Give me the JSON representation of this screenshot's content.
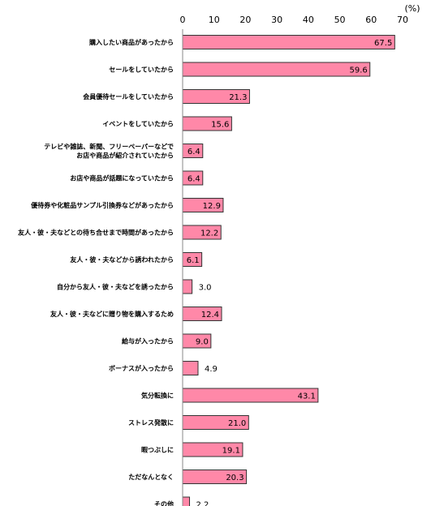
{
  "chart_data": {
    "type": "bar",
    "orientation": "horizontal",
    "title": "",
    "unit_label": "(%)",
    "xlim": [
      0,
      70
    ],
    "x_ticks": [
      0,
      10,
      20,
      30,
      40,
      50,
      60,
      70
    ],
    "bar_color": "#FF88A8",
    "bar_border_color": "#333333",
    "grid": false,
    "categories": [
      "購入したい商品があったから",
      "セールをしていたから",
      "会員優待セールをしていたから",
      "イベントをしていたから",
      [
        "テレビや雑誌、新聞、フリーペーパーなどで",
        "お店や商品が紹介されていたから"
      ],
      "お店や商品が話題になっていたから",
      "優待券や化粧品サンプル引換券などがあったから",
      "友人・彼・夫などとの待ち合せまで時間があったから",
      "友人・彼・夫などから誘われたから",
      "自分から友人・彼・夫などを誘ったから",
      "友人・彼・夫などに贈り物を購入するため",
      "給与が入ったから",
      "ボーナスが入ったから",
      "気分転換に",
      "ストレス発散に",
      "暇つぶしに",
      "ただなんとなく",
      "その他"
    ],
    "values": [
      67.5,
      59.6,
      21.3,
      15.6,
      6.4,
      6.4,
      12.9,
      12.2,
      6.1,
      3.0,
      12.4,
      9.0,
      4.9,
      43.1,
      21.0,
      19.1,
      20.3,
      2.2
    ],
    "value_labels": [
      "67.5",
      "59.6",
      "21.3",
      "15.6",
      "6.4",
      "6.4",
      "12.9",
      "12.2",
      "6.1",
      "3.0",
      "12.4",
      "9.0",
      "4.9",
      "43.1",
      "21.0",
      "19.1",
      "20.3",
      "2.2"
    ]
  }
}
